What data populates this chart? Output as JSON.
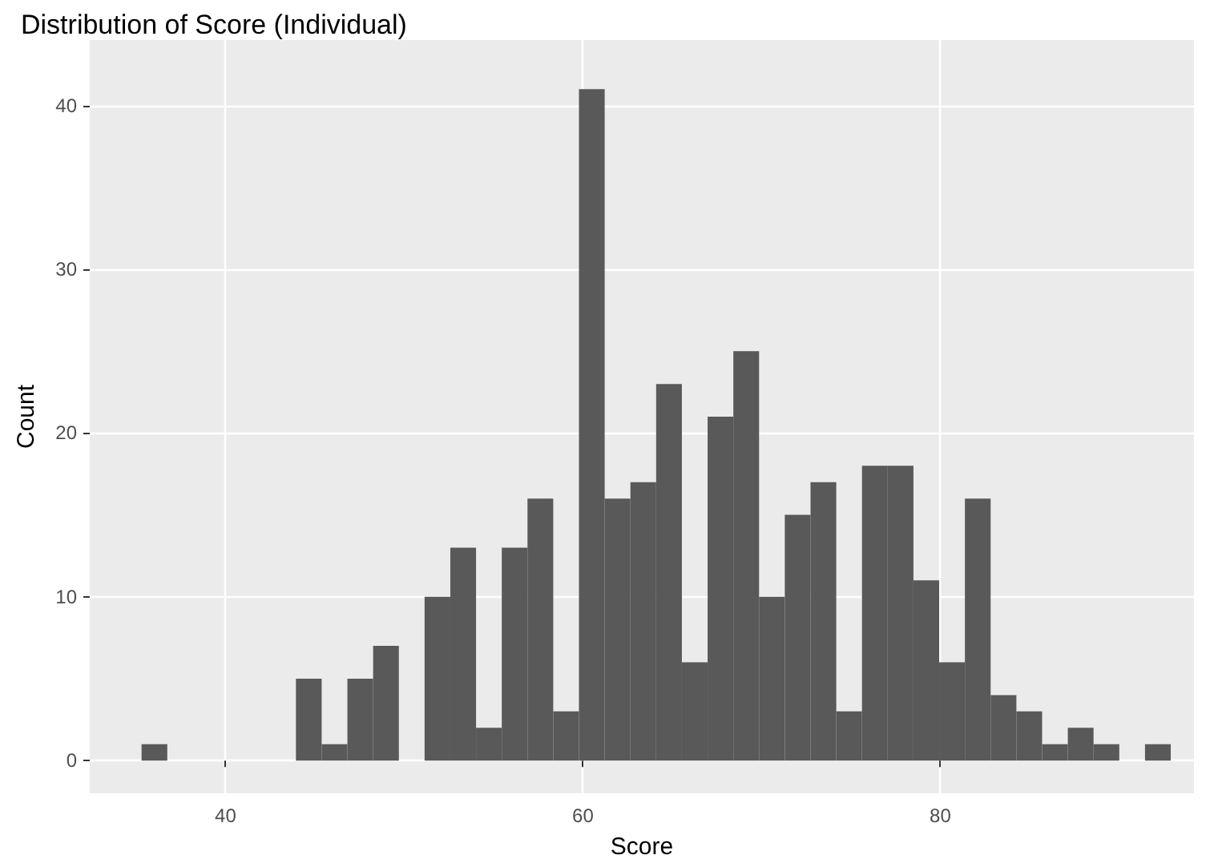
{
  "chart_data": {
    "type": "histogram",
    "title": "Distribution of Score (Individual)",
    "xlabel": "Score",
    "ylabel": "Count",
    "bins": [
      35.3,
      36.74,
      38.18,
      39.62,
      41.06,
      42.5,
      43.94,
      45.38,
      46.82,
      48.26,
      49.7,
      51.14,
      52.58,
      54.02,
      55.46,
      56.9,
      58.34,
      59.78,
      61.22,
      62.66,
      64.1,
      65.54,
      66.98,
      68.42,
      69.86,
      71.3,
      72.74,
      74.18,
      75.62,
      77.06,
      78.5,
      79.94,
      81.38,
      82.82,
      84.26,
      85.7,
      87.14,
      88.58,
      90.02,
      91.46,
      92.9
    ],
    "values": [
      1,
      0,
      0,
      0,
      0,
      0,
      5,
      1,
      5,
      7,
      0,
      10,
      13,
      2,
      13,
      16,
      3,
      41,
      16,
      17,
      23,
      6,
      21,
      25,
      10,
      15,
      17,
      3,
      18,
      18,
      11,
      6,
      16,
      4,
      3,
      1,
      2,
      1,
      0,
      1
    ],
    "color": "#595959",
    "xlim": [
      32.4,
      94.2
    ],
    "xticks": [
      40,
      60,
      80
    ],
    "ylim": [
      -2,
      44
    ],
    "yticks": [
      0,
      10,
      20,
      30,
      40
    ],
    "grid": true
  }
}
